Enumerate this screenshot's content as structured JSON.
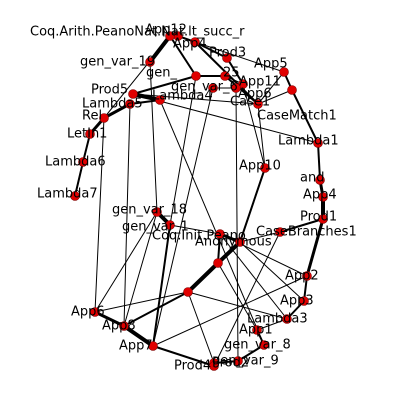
{
  "graph": {
    "node_color": "#e00000",
    "edge_color": "#000000",
    "nodes": [
      {
        "id": "n1",
        "label": "Coq.Arith.PeanoNat.Nat.lt_succ_r"
      },
      {
        "id": "n2",
        "label": "App12"
      },
      {
        "id": "n3",
        "label": "App4"
      },
      {
        "id": "n4",
        "label": "Prod3"
      },
      {
        "id": "n5",
        "label": "gen_var_19"
      },
      {
        "id": "n6",
        "label": "App5"
      },
      {
        "id": "n7",
        "label": "gen_"
      },
      {
        "id": "n8",
        "label": "25"
      },
      {
        "id": "n9",
        "label": "App11"
      },
      {
        "id": "n10",
        "label": "gen_var_6"
      },
      {
        "id": "n11",
        "label": "App6"
      },
      {
        "id": "n12",
        "label": "Prod5"
      },
      {
        "id": "n13",
        "label": "Lambda4"
      },
      {
        "id": "n14",
        "label": "Lambda5"
      },
      {
        "id": "n15",
        "label": "Case1"
      },
      {
        "id": "n16",
        "label": "CaseMatch1"
      },
      {
        "id": "n17",
        "label": "Rel"
      },
      {
        "id": "n18",
        "label": "LetIn1"
      },
      {
        "id": "n19",
        "label": "Lambda1"
      },
      {
        "id": "n20",
        "label": "Lambda6"
      },
      {
        "id": "n21",
        "label": "App10"
      },
      {
        "id": "n22",
        "label": "and"
      },
      {
        "id": "n23",
        "label": "Lambda7"
      },
      {
        "id": "n24",
        "label": "App4"
      },
      {
        "id": "n25",
        "label": "gen_var_18"
      },
      {
        "id": "n26",
        "label": "Prod1"
      },
      {
        "id": "n27",
        "label": "gen_var_1"
      },
      {
        "id": "n28",
        "label": "CaseBranches1"
      },
      {
        "id": "n29",
        "label": "Coq.Init.Peano"
      },
      {
        "id": "n30",
        "label": "Anonymous"
      },
      {
        "id": "n31",
        "label": "App2"
      },
      {
        "id": "n32",
        "label": "App3"
      },
      {
        "id": "n33",
        "label": "App6"
      },
      {
        "id": "n34",
        "label": "Lambda3"
      },
      {
        "id": "n35",
        "label": "App8"
      },
      {
        "id": "n36",
        "label": "App1"
      },
      {
        "id": "n37",
        "label": "App7"
      },
      {
        "id": "n38",
        "label": "gen_var_8"
      },
      {
        "id": "n39",
        "label": "gen_var_9"
      },
      {
        "id": "n40",
        "label": "Prod2"
      },
      {
        "id": "n41",
        "label": "Prod4"
      }
    ]
  }
}
